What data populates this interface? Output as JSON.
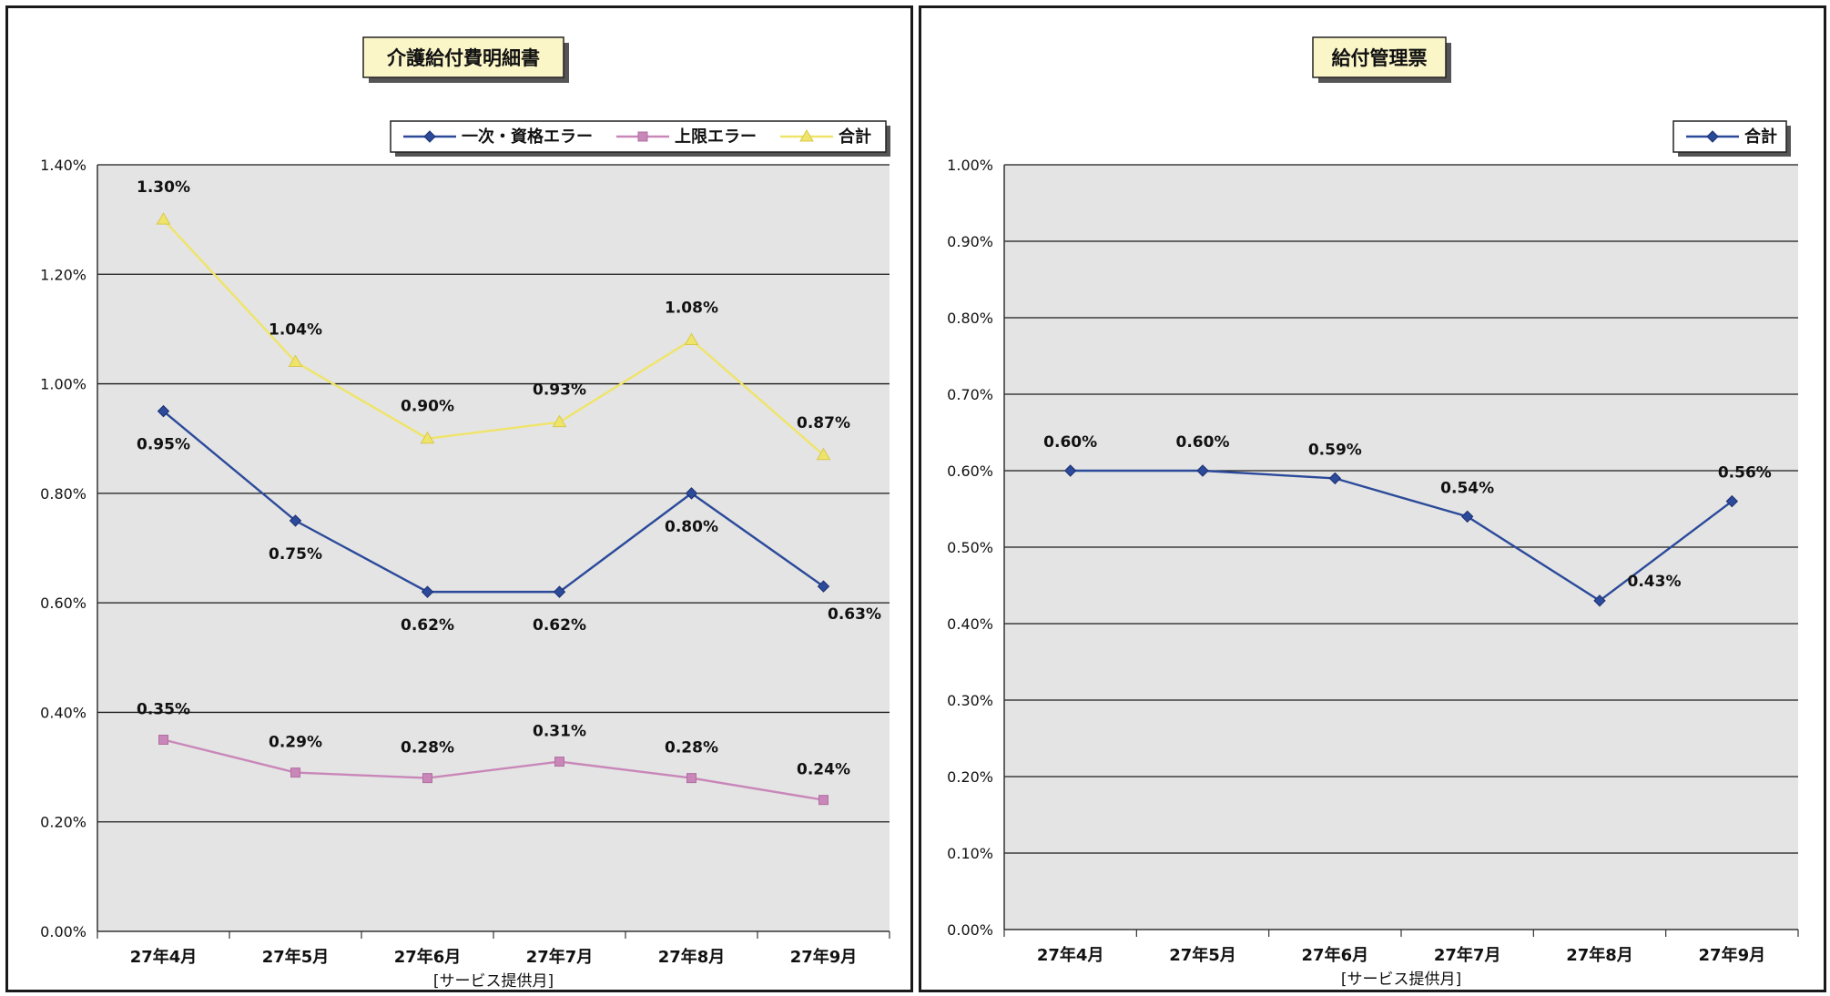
{
  "chart_data": [
    {
      "type": "line",
      "title": "介護給付費明細書",
      "categories": [
        "27年4月",
        "27年5月",
        "27年6月",
        "27年7月",
        "27年8月",
        "27年9月"
      ],
      "xlabel": "[サービス提供月]",
      "ylabel": "",
      "ylim": [
        0,
        1.4
      ],
      "yticks": [
        "0.00%",
        "0.20%",
        "0.40%",
        "0.60%",
        "0.80%",
        "1.00%",
        "1.20%",
        "1.40%"
      ],
      "grid": true,
      "legend_position": "top-right",
      "series": [
        {
          "name": "一次・資格エラー",
          "values": [
            0.95,
            0.75,
            0.62,
            0.62,
            0.8,
            0.63
          ],
          "labels": [
            "0.95%",
            "0.75%",
            "0.62%",
            "0.62%",
            "0.80%",
            "0.63%"
          ],
          "color": "#2b4a9a",
          "marker": "diamond"
        },
        {
          "name": "上限エラー",
          "values": [
            0.35,
            0.29,
            0.28,
            0.31,
            0.28,
            0.24
          ],
          "labels": [
            "0.35%",
            "0.29%",
            "0.28%",
            "0.31%",
            "0.28%",
            "0.24%"
          ],
          "color": "#c987b9",
          "marker": "square"
        },
        {
          "name": "合計",
          "values": [
            1.3,
            1.04,
            0.9,
            0.93,
            1.08,
            0.87
          ],
          "labels": [
            "1.30%",
            "1.04%",
            "0.90%",
            "0.93%",
            "1.08%",
            "0.87%"
          ],
          "color": "#efe46a",
          "marker": "triangle"
        }
      ]
    },
    {
      "type": "line",
      "title": "給付管理票",
      "categories": [
        "27年4月",
        "27年5月",
        "27年6月",
        "27年7月",
        "27年8月",
        "27年9月"
      ],
      "xlabel": "[サービス提供月]",
      "ylabel": "",
      "ylim": [
        0,
        1.0
      ],
      "yticks": [
        "0.00%",
        "0.10%",
        "0.20%",
        "0.30%",
        "0.40%",
        "0.50%",
        "0.60%",
        "0.70%",
        "0.80%",
        "0.90%",
        "1.00%"
      ],
      "grid": true,
      "legend_position": "top-right",
      "series": [
        {
          "name": "合計",
          "values": [
            0.6,
            0.6,
            0.59,
            0.54,
            0.43,
            0.56
          ],
          "labels": [
            "0.60%",
            "0.60%",
            "0.59%",
            "0.54%",
            "0.43%",
            "0.56%"
          ],
          "color": "#2b4a9a",
          "marker": "diamond"
        }
      ]
    }
  ]
}
